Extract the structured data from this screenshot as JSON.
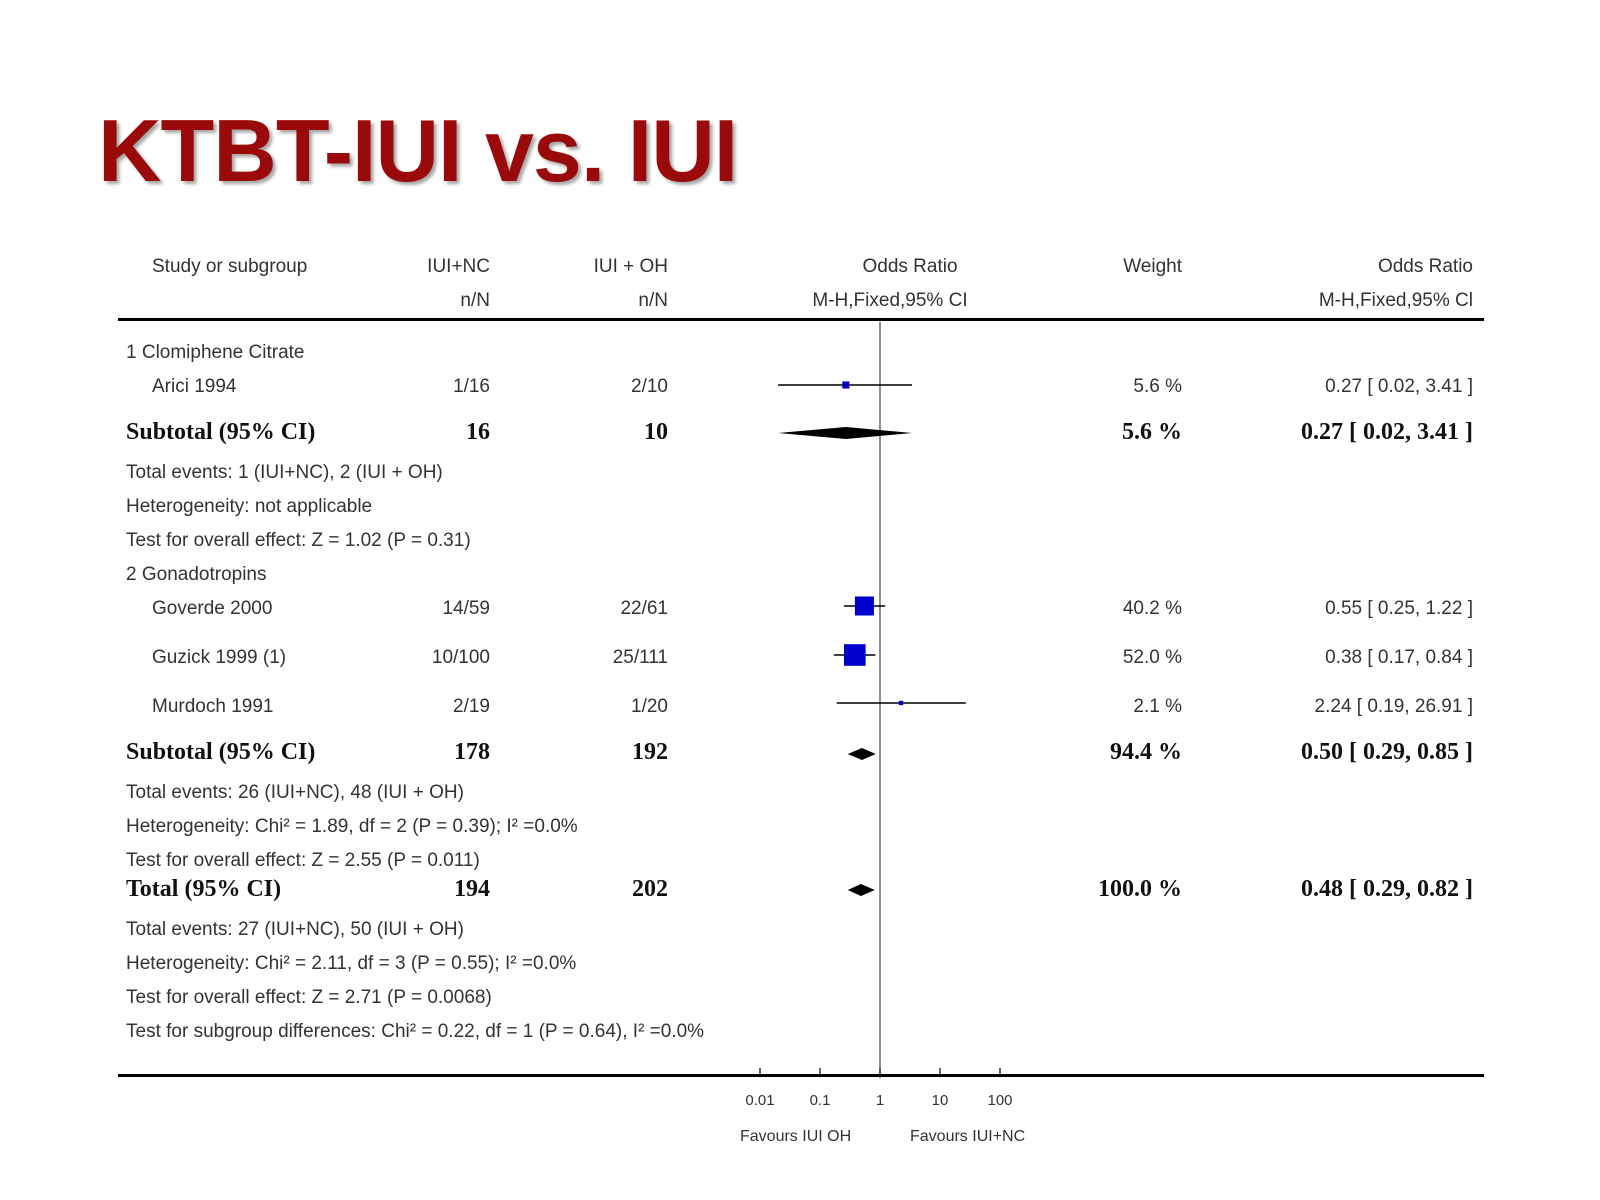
{
  "slide_title": "KTBT-IUI vs. IUI",
  "colors": {
    "title": "#9b0a0a",
    "square": "#0000cc",
    "diamond": "#000000"
  },
  "header": {
    "study_label": "Study or subgroup",
    "group1": "IUI+NC",
    "group1_sub": "n/N",
    "group2": "IUI + OH",
    "group2_sub": "n/N",
    "or_label": "Odds Ratio",
    "or_method": "M-H,Fixed,95% CI",
    "weight_label": "Weight",
    "or2_label": "Odds Ratio",
    "or2_method": "M-H,Fixed,95% Cl"
  },
  "rows": {
    "sub1_heading": "1 Clomiphene Citrate",
    "arici": {
      "name": "Arici 1994",
      "g1": "1/16",
      "g2": "2/10",
      "weight": "5.6 %",
      "ci": "0.27 [ 0.02, 3.41 ]"
    },
    "subtotal1": {
      "label": "Subtotal (95% CI)",
      "g1": "16",
      "g2": "10",
      "weight": "5.6 %",
      "ci": "0.27 [ 0.02, 3.41 ]"
    },
    "sub1_events": "Total events: 1 (IUI+NC), 2 (IUI + OH)",
    "sub1_het": "Heterogeneity: not applicable",
    "sub1_test": "Test for overall effect: Z = 1.02 (P = 0.31)",
    "sub2_heading": "2 Gonadotropins",
    "goverde": {
      "name": "Goverde 2000",
      "g1": "14/59",
      "g2": "22/61",
      "weight": "40.2 %",
      "ci": "0.55 [ 0.25, 1.22 ]"
    },
    "guzick": {
      "name": "Guzick 1999 (1)",
      "g1": "10/100",
      "g2": "25/111",
      "weight": "52.0 %",
      "ci": "0.38 [ 0.17, 0.84 ]"
    },
    "murdoch": {
      "name": "Murdoch 1991",
      "g1": "2/19",
      "g2": "1/20",
      "weight": "2.1 %",
      "ci": "2.24 [ 0.19, 26.91 ]"
    },
    "subtotal2": {
      "label": "Subtotal (95% CI)",
      "g1": "178",
      "g2": "192",
      "weight": "94.4 %",
      "ci": "0.50 [ 0.29, 0.85 ]"
    },
    "sub2_events": "Total events: 26 (IUI+NC), 48 (IUI + OH)",
    "sub2_het": "Heterogeneity: Chi² = 1.89, df = 2 (P = 0.39); I² =0.0%",
    "sub2_test": "Test for overall effect: Z = 2.55 (P = 0.011)",
    "total": {
      "label": "Total (95% CI)",
      "g1": "194",
      "g2": "202",
      "weight": "100.0 %",
      "ci": "0.48 [ 0.29, 0.82 ]"
    },
    "total_events": "Total events: 27 (IUI+NC), 50 (IUI + OH)",
    "total_het": "Heterogeneity: Chi² = 2.11, df = 3 (P = 0.55); I² =0.0%",
    "total_test": "Test for overall effect: Z = 2.71 (P = 0.0068)",
    "subgroup_diff": "Test for subgroup differences: Chi² = 0.22, df = 1 (P = 0.64), I² =0.0%"
  },
  "footer": {
    "favours_left": "Favours IUI OH",
    "favours_right": "Favours IUI+NC"
  },
  "chart_data": {
    "type": "forest",
    "x_scale": "log",
    "xlim": [
      0.01,
      100
    ],
    "x_ticks": [
      0.01,
      0.1,
      1,
      10,
      100
    ],
    "x_tick_labels": [
      "0.01",
      "0.1",
      "1",
      "10",
      "100"
    ],
    "reference_line": 1,
    "studies": [
      {
        "name": "Arici 1994",
        "or": 0.27,
        "lo": 0.02,
        "hi": 3.41,
        "weight": 5.6
      },
      {
        "name": "Goverde 2000",
        "or": 0.55,
        "lo": 0.25,
        "hi": 1.22,
        "weight": 40.2
      },
      {
        "name": "Guzick 1999 (1)",
        "or": 0.38,
        "lo": 0.17,
        "hi": 0.84,
        "weight": 52.0
      },
      {
        "name": "Murdoch 1991",
        "or": 2.24,
        "lo": 0.19,
        "hi": 26.91,
        "weight": 2.1
      }
    ],
    "pooled": [
      {
        "name": "Subtotal (95% CI)",
        "subgroup": "1 Clomiphene Citrate",
        "or": 0.27,
        "lo": 0.02,
        "hi": 3.41
      },
      {
        "name": "Subtotal (95% CI)",
        "subgroup": "2 Gonadotropins",
        "or": 0.5,
        "lo": 0.29,
        "hi": 0.85
      },
      {
        "name": "Total (95% CI)",
        "or": 0.48,
        "lo": 0.29,
        "hi": 0.82
      }
    ]
  }
}
